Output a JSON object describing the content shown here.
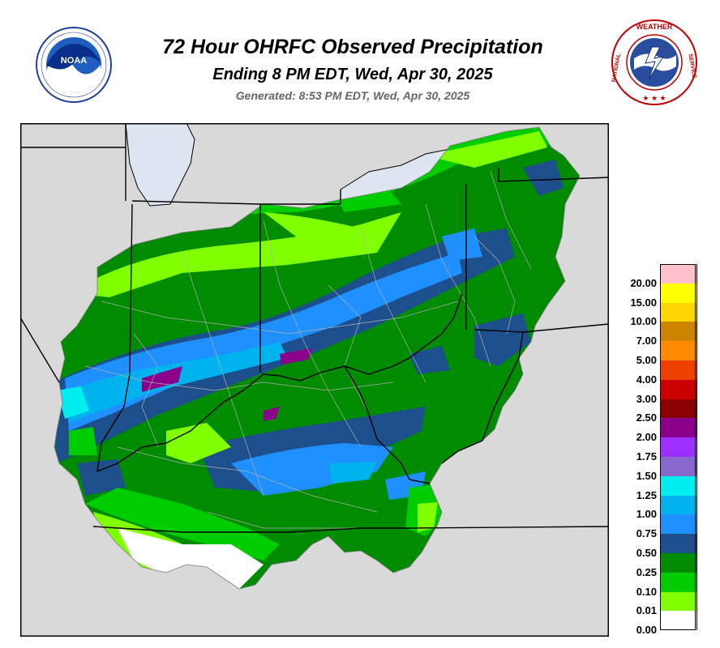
{
  "header": {
    "title": "72 Hour OHRFC Observed Precipitation",
    "subtitle": "Ending 8 PM EDT, Wed, Apr 30, 2025",
    "generated": "Generated: 8:53 PM EDT, Wed, Apr 30, 2025"
  },
  "logos": {
    "noaa": {
      "icon": "noaa-logo-icon",
      "text": "NOAA",
      "ring_text": "NATIONAL OCEANIC AND ATMOSPHERIC ADMINISTRATION · U.S. DEPARTMENT OF COMMERCE"
    },
    "nws": {
      "icon": "nws-logo-icon",
      "ring_text": "NATIONAL WEATHER SERVICE"
    }
  },
  "legend": {
    "entries": [
      {
        "label": "20.00",
        "color": "#ffc0cb"
      },
      {
        "label": "15.00",
        "color": "#ffff00"
      },
      {
        "label": "10.00",
        "color": "#ffd700"
      },
      {
        "label": "7.00",
        "color": "#cd8500"
      },
      {
        "label": "5.00",
        "color": "#ff8c00"
      },
      {
        "label": "4.00",
        "color": "#ee4000"
      },
      {
        "label": "3.00",
        "color": "#cd0000"
      },
      {
        "label": "2.50",
        "color": "#8b0000"
      },
      {
        "label": "2.00",
        "color": "#8b008b"
      },
      {
        "label": "1.75",
        "color": "#9b30ff"
      },
      {
        "label": "1.50",
        "color": "#8968cd"
      },
      {
        "label": "1.25",
        "color": "#00eeee"
      },
      {
        "label": "1.00",
        "color": "#00b2ee"
      },
      {
        "label": "0.75",
        "color": "#1e90ff"
      },
      {
        "label": "0.50",
        "color": "#1c4f8c"
      },
      {
        "label": "0.25",
        "color": "#008b00"
      },
      {
        "label": "0.10",
        "color": "#00cd00"
      },
      {
        "label": "0.01",
        "color": "#7fff00"
      },
      {
        "label": "0.00",
        "color": "#ffffff"
      }
    ]
  },
  "map": {
    "background_color": "#d9d9d9",
    "lake_color": "#dde6f0",
    "basin_color": "#008b00"
  }
}
